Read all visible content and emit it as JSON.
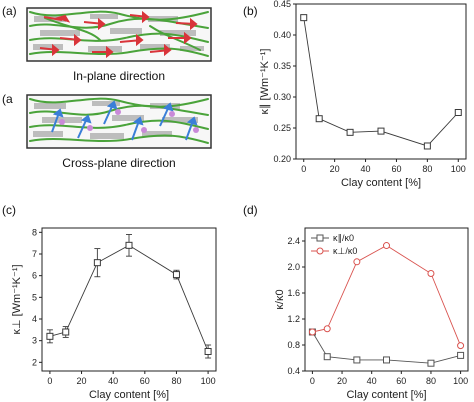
{
  "panels": {
    "a": {
      "letter": "(a)",
      "caption_top": "In-plane direction",
      "caption_bottom": "Cross-plane direction"
    },
    "b": {
      "letter": "(b)"
    },
    "c": {
      "letter": "(c)"
    },
    "d": {
      "letter": "(d)"
    }
  },
  "colors": {
    "black": "#3a3a3a",
    "red": "#d9534f",
    "green": "#4aa33a",
    "gray": "#bdbdbd",
    "blue": "#3a7fd8"
  },
  "chart_data": [
    {
      "id": "b",
      "type": "line",
      "x": [
        0,
        10,
        30,
        50,
        80,
        100
      ],
      "series": [
        {
          "name": "",
          "values": [
            0.428,
            0.265,
            0.243,
            0.245,
            0.221,
            0.275
          ],
          "color": "#3a3a3a",
          "marker": "square"
        }
      ],
      "xlabel": "Clay content [%]",
      "ylabel": "κ∥ [Wm⁻¹K⁻¹]",
      "xlim": [
        -5,
        105
      ],
      "ylim": [
        0.2,
        0.45
      ],
      "xticks": [
        0,
        20,
        40,
        60,
        80,
        100
      ],
      "yticks": [
        0.2,
        0.25,
        0.3,
        0.35,
        0.4,
        0.45
      ],
      "ytick_labels": [
        "0.20",
        "0.25",
        "0.30",
        "0.35",
        "0.40",
        "0.45"
      ],
      "title": ""
    },
    {
      "id": "c",
      "type": "line",
      "x": [
        0,
        10,
        30,
        50,
        80,
        100
      ],
      "series": [
        {
          "name": "",
          "values": [
            3.2,
            3.4,
            6.6,
            7.4,
            6.05,
            2.5
          ],
          "errors": [
            0.3,
            0.25,
            0.65,
            0.5,
            0.2,
            0.3
          ],
          "color": "#3a3a3a",
          "marker": "square"
        }
      ],
      "xlabel": "Clay content [%]",
      "ylabel": "κ⊥ [Wm⁻¹K⁻¹]",
      "xlim": [
        -5,
        105
      ],
      "ylim": [
        1.6,
        8.2
      ],
      "xticks": [
        0,
        20,
        40,
        60,
        80,
        100
      ],
      "yticks": [
        2,
        3,
        4,
        5,
        6,
        7,
        8
      ],
      "ytick_labels": [
        "2",
        "3",
        "4",
        "5",
        "6",
        "7",
        "8"
      ],
      "title": ""
    },
    {
      "id": "d",
      "type": "line",
      "x": [
        0,
        10,
        30,
        50,
        80,
        100
      ],
      "series": [
        {
          "name": "κ∥/κ0",
          "values": [
            1.0,
            0.62,
            0.57,
            0.57,
            0.52,
            0.64
          ],
          "color": "#555555",
          "marker": "square"
        },
        {
          "name": "κ⊥/κ0",
          "values": [
            1.0,
            1.05,
            2.08,
            2.33,
            1.9,
            0.79
          ],
          "color": "#d9534f",
          "marker": "circle"
        }
      ],
      "xlabel": "Clay content [%]",
      "ylabel": "κ/κ0",
      "xlim": [
        -5,
        105
      ],
      "ylim": [
        0.4,
        2.6
      ],
      "xticks": [
        0,
        20,
        40,
        60,
        80,
        100
      ],
      "yticks": [
        0.4,
        0.8,
        1.2,
        1.6,
        2.0,
        2.4
      ],
      "ytick_labels": [
        "0.4",
        "0.8",
        "1.2",
        "1.6",
        "2.0",
        "2.4"
      ],
      "legend": "top-left",
      "title": ""
    }
  ]
}
